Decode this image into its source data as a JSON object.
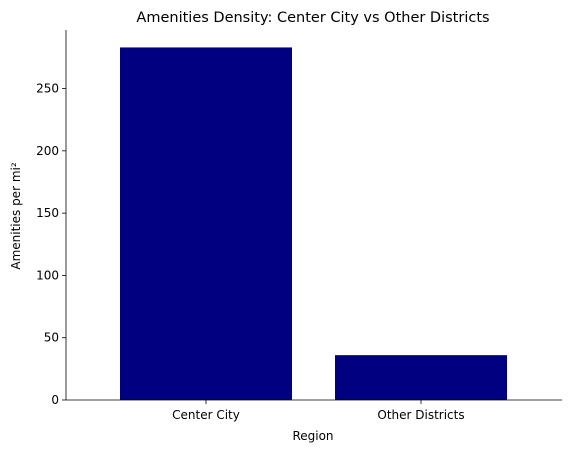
{
  "chart_data": {
    "type": "bar",
    "title": "Amenities Density: Center City vs Other Districts",
    "xlabel": "Region",
    "ylabel": "Amenities per mi²",
    "categories": [
      "Center City",
      "Other Districts"
    ],
    "values": [
      283,
      36
    ],
    "ylim": [
      0,
      297
    ],
    "yticks": [
      0,
      50,
      100,
      150,
      200,
      250
    ],
    "bar_color": "#000080",
    "grid": false,
    "legend": "none"
  }
}
